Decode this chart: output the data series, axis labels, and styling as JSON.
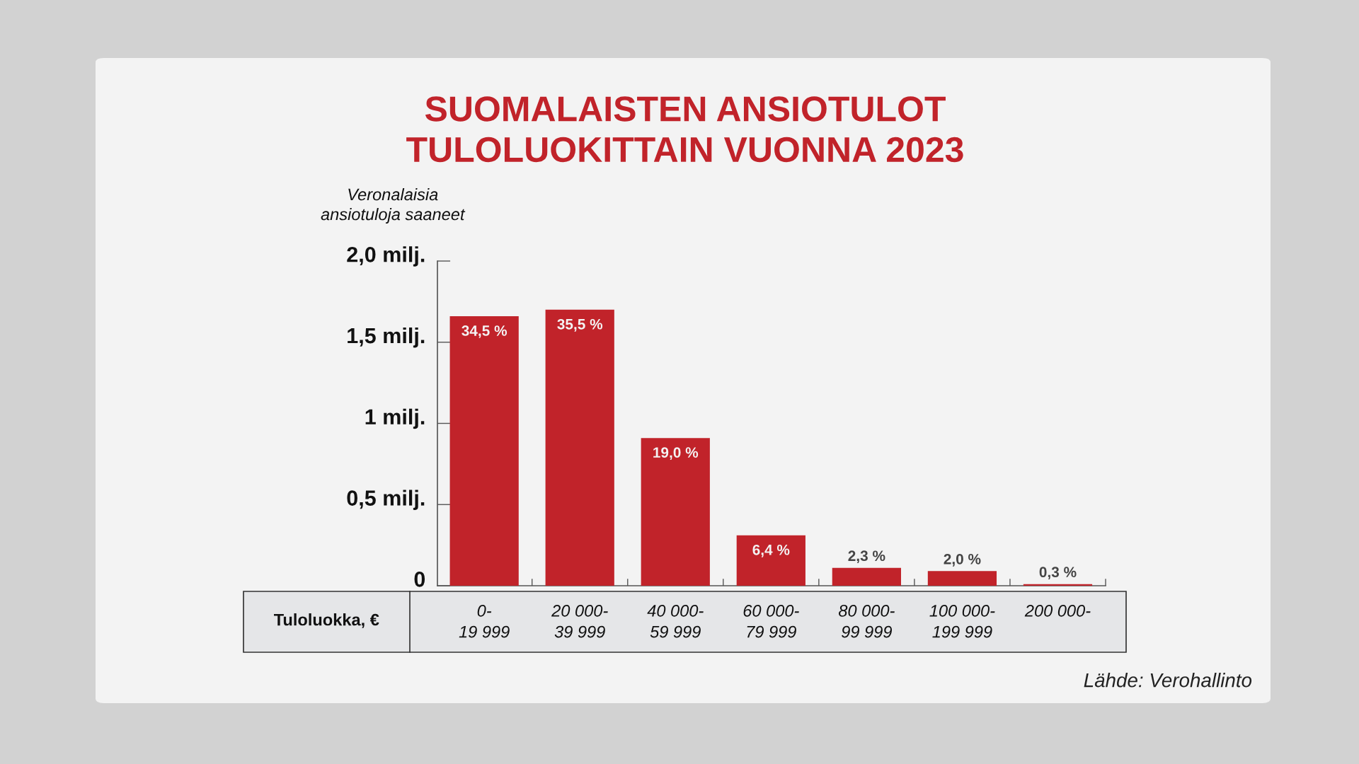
{
  "chart_data": {
    "type": "bar",
    "title": "SUOMALAISTEN ANSIOTULOT\nTULOLUOKITTAIN VUONNA 2023",
    "ylabel": "Veronalaisia\nansiotuloja saaneet",
    "xlabel": "Tuloluokka, €",
    "categories": [
      "0-\n19 999",
      "20 000-\n39 999",
      "40 000-\n59 999",
      "60 000-\n79 999",
      "80 000-\n99 999",
      "100 000-\n199 999",
      "200 000-"
    ],
    "values": [
      1.66,
      1.7,
      0.91,
      0.31,
      0.11,
      0.09,
      0.01
    ],
    "color": "#c1232a",
    "ylim": [
      0,
      2.0
    ],
    "yticks": [
      0,
      {
        "value": 0.5,
        "label": "0,5 milj."
      },
      {
        "value": 1,
        "label": "1 milj."
      },
      {
        "value": 1.5,
        "label": "1,5 milj."
      },
      {
        "value": 2.0,
        "label": "2,0 milj."
      }
    ],
    "grid": false,
    "annotations": [
      {
        "text": "34,5 %",
        "x": "0-\n19 999",
        "y": 1.66
      },
      {
        "text": "35,5 %",
        "x": "20 000-\n39 999",
        "y": 1.7
      },
      {
        "text": "19,0 %",
        "x": "40 000-\n59 999",
        "y": 0.91
      },
      {
        "text": "6,4 %",
        "x": "60 000-\n79 999",
        "y": 0.31
      },
      {
        "text": "2,3 %",
        "x": "80 000-\n99 999",
        "y": 0.11
      },
      {
        "text": "2,0 %",
        "x": "100 000-\n199 999",
        "y": 0.09
      },
      {
        "text": "0,3 %",
        "x": "200 000-",
        "y": 0.01
      },
      "Lähde: Verohallinto"
    ]
  }
}
